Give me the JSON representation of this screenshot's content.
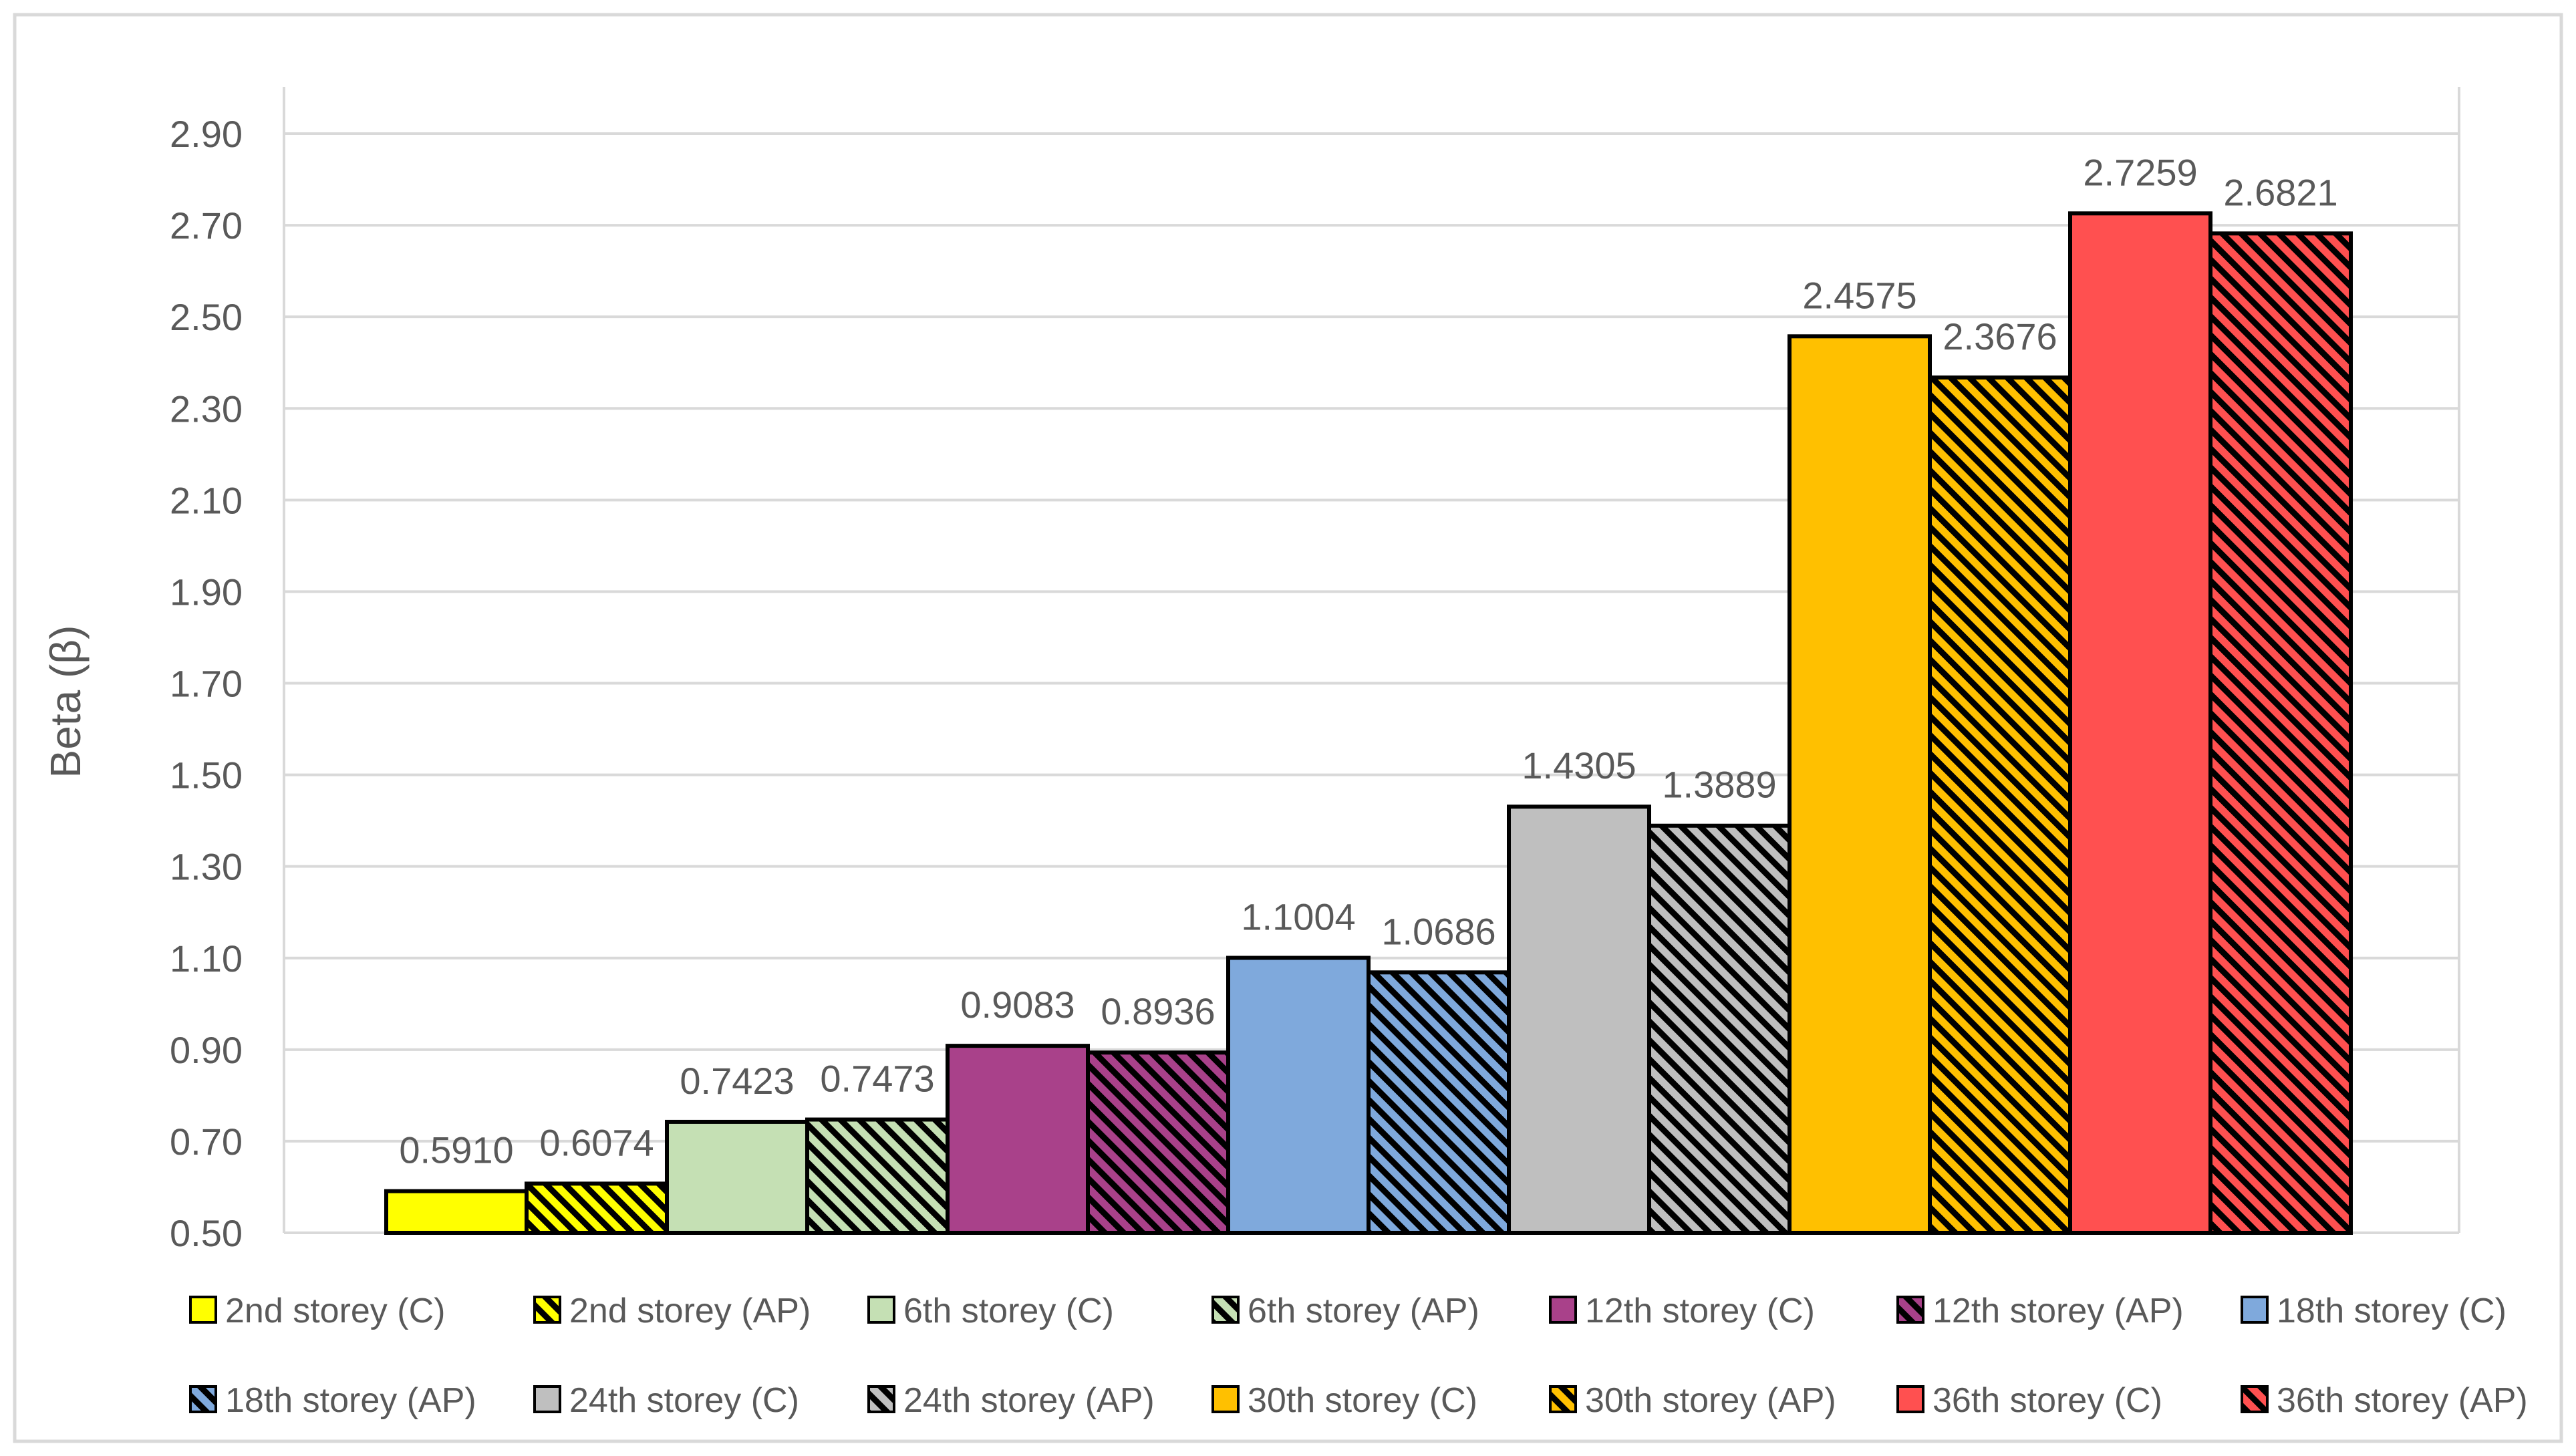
{
  "chart_data": {
    "type": "bar",
    "title": "",
    "xlabel": "",
    "ylabel": "Beta (β)",
    "ylim": [
      0.5,
      2.9
    ],
    "yticks": [
      "0.50",
      "0.70",
      "0.90",
      "1.10",
      "1.30",
      "1.50",
      "1.70",
      "1.90",
      "2.10",
      "2.30",
      "2.50",
      "2.70",
      "2.90"
    ],
    "grid": true,
    "legend_position": "bottom",
    "series": [
      {
        "name": "2nd storey (C)",
        "value": 0.591,
        "label": "0.5910",
        "color": "#FFFF00",
        "pattern": false
      },
      {
        "name": "2nd storey (AP)",
        "value": 0.6074,
        "label": "0.6074",
        "color": "#FFFF00",
        "pattern": true
      },
      {
        "name": "6th storey (C)",
        "value": 0.7423,
        "label": "0.7423",
        "color": "#C5E0B4",
        "pattern": false
      },
      {
        "name": "6th storey (AP)",
        "value": 0.7473,
        "label": "0.7473",
        "color": "#C5E0B4",
        "pattern": true
      },
      {
        "name": "12th storey (C)",
        "value": 0.9083,
        "label": "0.9083",
        "color": "#A9418A",
        "pattern": false
      },
      {
        "name": "12th storey (AP)",
        "value": 0.8936,
        "label": "0.8936",
        "color": "#A9418A",
        "pattern": true
      },
      {
        "name": "18th storey (C)",
        "value": 1.1004,
        "label": "1.1004",
        "color": "#7FA9DC",
        "pattern": false
      },
      {
        "name": "18th storey (AP)",
        "value": 1.0686,
        "label": "1.0686",
        "color": "#7FA9DC",
        "pattern": true
      },
      {
        "name": "24th storey (C)",
        "value": 1.4305,
        "label": "1.4305",
        "color": "#BFBFBF",
        "pattern": false
      },
      {
        "name": "24th storey (AP)",
        "value": 1.3889,
        "label": "1.3889",
        "color": "#BFBFBF",
        "pattern": true
      },
      {
        "name": "30th storey (C)",
        "value": 2.4575,
        "label": "2.4575",
        "color": "#FFC000",
        "pattern": false
      },
      {
        "name": "30th storey (AP)",
        "value": 2.3676,
        "label": "2.3676",
        "color": "#FFC000",
        "pattern": true
      },
      {
        "name": "36th storey (C)",
        "value": 2.7259,
        "label": "2.7259",
        "color": "#FF5050",
        "pattern": false
      },
      {
        "name": "36th storey (AP)",
        "value": 2.6821,
        "label": "2.6821",
        "color": "#FF5050",
        "pattern": true
      }
    ]
  }
}
